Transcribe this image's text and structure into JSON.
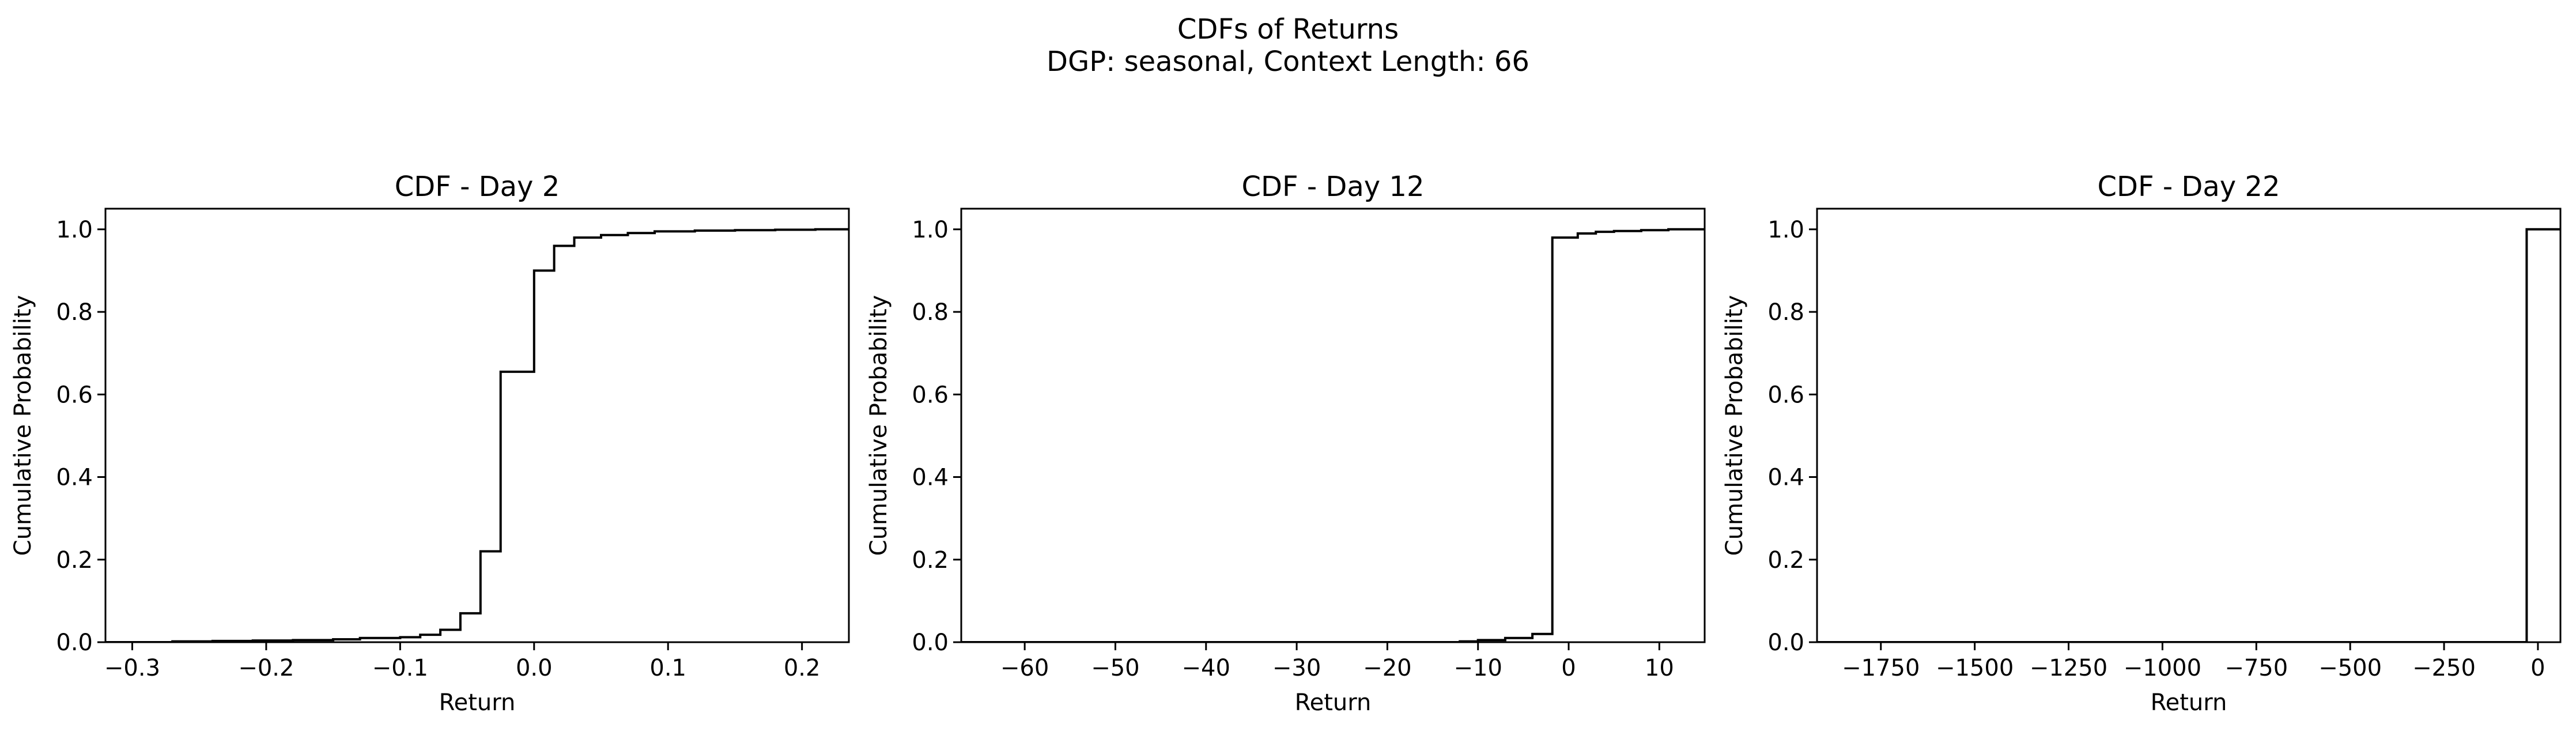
{
  "figure": {
    "title_line1": "CDFs of Returns",
    "title_line2": "DGP: seasonal, Context Length: 66"
  },
  "chart_data": [
    {
      "type": "line",
      "subtype": "step-cdf",
      "title": "CDF - Day 2",
      "xlabel": "Return",
      "ylabel": "Cumulative Probability",
      "xlim": [
        -0.32,
        0.235
      ],
      "ylim": [
        0,
        1.05
      ],
      "xticks": [
        -0.3,
        -0.2,
        -0.1,
        0.0,
        0.1,
        0.2
      ],
      "xtick_labels": [
        "−0.3",
        "−0.2",
        "−0.1",
        "0.0",
        "0.1",
        "0.2"
      ],
      "yticks": [
        0.0,
        0.2,
        0.4,
        0.6,
        0.8,
        1.0
      ],
      "ytick_labels": [
        "0.0",
        "0.2",
        "0.4",
        "0.6",
        "0.8",
        "1.0"
      ],
      "grid": false,
      "color": "#000000",
      "x": [
        -0.32,
        -0.3,
        -0.27,
        -0.24,
        -0.21,
        -0.18,
        -0.15,
        -0.13,
        -0.1,
        -0.085,
        -0.07,
        -0.055,
        -0.04,
        -0.025,
        -0.01,
        0.0,
        0.015,
        0.03,
        0.05,
        0.07,
        0.09,
        0.12,
        0.15,
        0.18,
        0.21,
        0.235
      ],
      "y": [
        0.0,
        0.0,
        0.002,
        0.003,
        0.004,
        0.005,
        0.007,
        0.01,
        0.012,
        0.018,
        0.03,
        0.07,
        0.22,
        0.655,
        0.655,
        0.9,
        0.96,
        0.98,
        0.986,
        0.991,
        0.995,
        0.997,
        0.998,
        0.999,
        1.0,
        1.0
      ]
    },
    {
      "type": "line",
      "subtype": "step-cdf",
      "title": "CDF - Day 12",
      "xlabel": "Return",
      "ylabel": "Cumulative Probability",
      "xlim": [
        -67,
        15
      ],
      "ylim": [
        0,
        1.05
      ],
      "xticks": [
        -60,
        -50,
        -40,
        -30,
        -20,
        -10,
        0,
        10
      ],
      "xtick_labels": [
        "−60",
        "−50",
        "−40",
        "−30",
        "−20",
        "−10",
        "0",
        "10"
      ],
      "yticks": [
        0.0,
        0.2,
        0.4,
        0.6,
        0.8,
        1.0
      ],
      "ytick_labels": [
        "0.0",
        "0.2",
        "0.4",
        "0.6",
        "0.8",
        "1.0"
      ],
      "grid": false,
      "color": "#000000",
      "x": [
        -67,
        -65,
        -12,
        -10,
        -7,
        -4,
        -1.8,
        1,
        3,
        5,
        8,
        11,
        15
      ],
      "y": [
        0.0,
        0.0,
        0.002,
        0.005,
        0.01,
        0.02,
        0.98,
        0.99,
        0.994,
        0.996,
        0.998,
        1.0,
        1.0
      ],
      "ylim_note": ""
    },
    {
      "type": "line",
      "subtype": "step-cdf",
      "title": "CDF - Day 22",
      "xlabel": "Return",
      "ylabel": "Cumulative Probability",
      "xlim": [
        -1920,
        60
      ],
      "ylim": [
        0,
        1.05
      ],
      "xticks": [
        -1750,
        -1500,
        -1250,
        -1000,
        -750,
        -500,
        -250,
        0
      ],
      "xtick_labels": [
        "−1750",
        "−1500",
        "−1250",
        "−1000",
        "−750",
        "−500",
        "−250",
        "0"
      ],
      "yticks": [
        0.0,
        0.2,
        0.4,
        0.6,
        0.8,
        1.0
      ],
      "ytick_labels": [
        "0.0",
        "0.2",
        "0.4",
        "0.6",
        "0.8",
        "1.0"
      ],
      "grid": false,
      "color": "#000000",
      "x": [
        -1920,
        -1880,
        -30,
        60
      ],
      "y": [
        0.0,
        0.0,
        1.0,
        1.0
      ]
    }
  ]
}
